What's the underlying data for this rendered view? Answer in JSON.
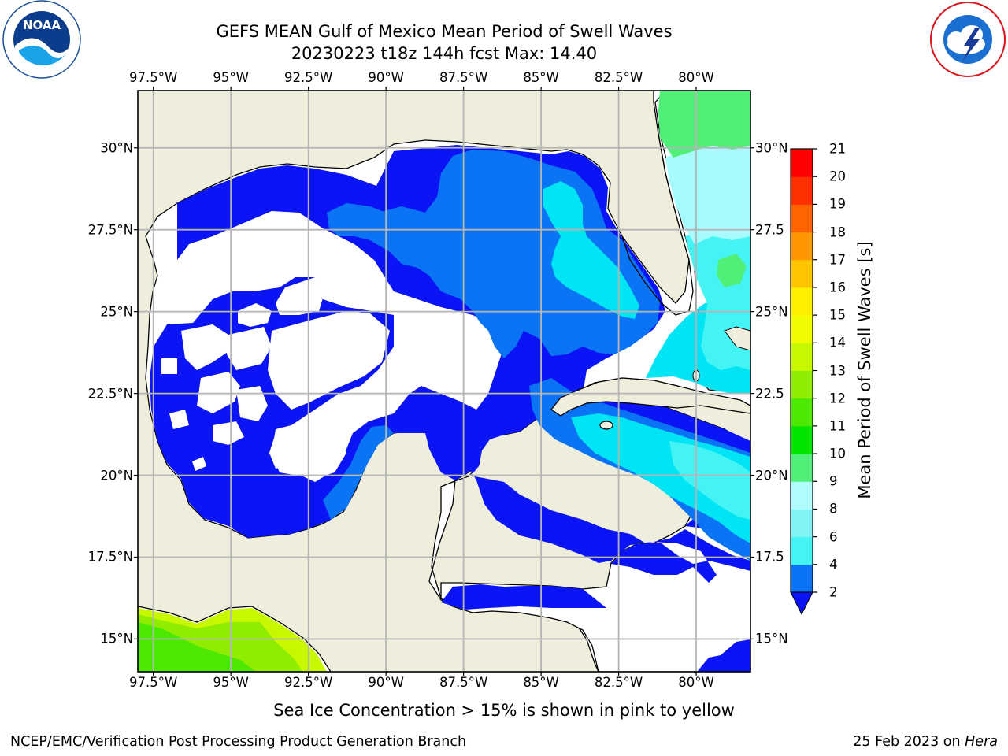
{
  "title": {
    "line1": "GEFS MEAN Gulf of Mexico Mean Period of Swell Waves",
    "line2": "20230223 t18z 144h fcst   Max: 14.40"
  },
  "logos": {
    "left": {
      "text": "NOAA",
      "icon": "noaa-logo-icon"
    },
    "right": {
      "icon": "national-weather-service-logo-icon"
    }
  },
  "axes": {
    "lon_labels": [
      "97.5°W",
      "95°W",
      "92.5°W",
      "90°W",
      "87.5°W",
      "85°W",
      "82.5°W",
      "80°W"
    ],
    "lat_labels_left": [
      "30°N",
      "27.5°N",
      "25°N",
      "22.5°N",
      "20°N",
      "17.5°N",
      "15°N"
    ],
    "lat_labels_right": [
      "30°N",
      "27.5",
      "25°N",
      "22.5",
      "20°N",
      "17.5",
      "15°N"
    ],
    "lon_values": [
      -97.5,
      -95,
      -92.5,
      -90,
      -87.5,
      -85,
      -82.5,
      -80
    ],
    "lat_values": [
      30,
      27.5,
      25,
      22.5,
      20,
      17.5,
      15
    ],
    "lon_range": [
      -98,
      -78.25
    ],
    "lat_range": [
      14,
      31.75
    ],
    "grid": true
  },
  "colorbar": {
    "label": "Mean Period of Swell Waves [s]",
    "ticks": [
      "21",
      "20",
      "19",
      "18",
      "17",
      "16",
      "15",
      "14",
      "13",
      "12",
      "11",
      "10",
      "9",
      "8",
      "6",
      "4",
      "2"
    ],
    "levels": [
      2,
      4,
      6,
      8,
      9,
      10,
      11,
      12,
      13,
      14,
      15,
      16,
      17,
      18,
      19,
      20,
      21
    ],
    "colors": [
      "#0a74f4",
      "#00e4f4",
      "#44f4f4",
      "#80f4f4",
      "#b0fcfc",
      "#50f078",
      "#00e400",
      "#4ce800",
      "#90ec00",
      "#c8f800",
      "#f0fc00",
      "#fff000",
      "#ffc400",
      "#ff9600",
      "#ff6400",
      "#ff3000",
      "#ff0000"
    ],
    "under_color": "#0a14f4",
    "extend": "min"
  },
  "colors": {
    "land": "#efeedc",
    "swell_lt2": "#0a14f4",
    "swell_2_4": "#0a74f4",
    "swell_4_6": "#00e4f4",
    "swell_6_8": "#44f4f4",
    "swell_8_9": "#a6fcfc",
    "swell_9_10": "#50f078",
    "swell_11_12": "#4ce800",
    "swell_12_13": "#90ec00",
    "swell_13_14": "#c8f800"
  },
  "note": "Sea Ice Concentration > 15% is shown in pink to yellow",
  "footer": {
    "left": "NCEP/EMC/Verification Post Processing Product Generation Branch",
    "right_date": "25 Feb 2023 on ",
    "right_host": "Hera"
  }
}
